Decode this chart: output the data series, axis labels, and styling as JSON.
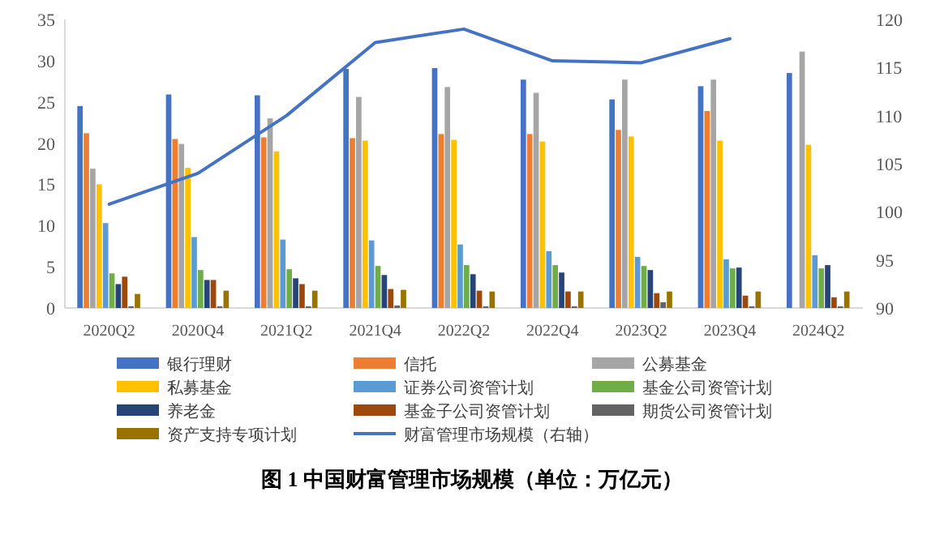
{
  "chart_data": {
    "type": "bar",
    "title": "图 1 中国财富管理市场规模（单位：万亿元）",
    "categories": [
      "2020Q2",
      "2020Q4",
      "2021Q2",
      "2021Q4",
      "2022Q2",
      "2022Q4",
      "2023Q2",
      "2023Q4",
      "2024Q2"
    ],
    "series": [
      {
        "name": "银行理财",
        "color": "#4472c4",
        "values": [
          24.5,
          25.9,
          25.8,
          29.0,
          29.1,
          27.7,
          25.3,
          26.9,
          28.5
        ]
      },
      {
        "name": "信托",
        "color": "#ed7d31",
        "values": [
          21.2,
          20.5,
          20.7,
          20.6,
          21.1,
          21.1,
          21.6,
          23.9,
          null
        ]
      },
      {
        "name": "公募基金",
        "color": "#a5a5a5",
        "values": [
          16.9,
          19.9,
          23.0,
          25.6,
          26.8,
          26.1,
          27.7,
          27.7,
          31.1
        ]
      },
      {
        "name": "私募基金",
        "color": "#ffc000",
        "values": [
          15.0,
          17.0,
          19.0,
          20.3,
          20.4,
          20.2,
          20.8,
          20.3,
          19.8
        ]
      },
      {
        "name": "证券公司资管计划",
        "color": "#5b9bd5",
        "values": [
          10.3,
          8.6,
          8.3,
          8.2,
          7.7,
          6.9,
          6.2,
          5.9,
          6.4
        ]
      },
      {
        "name": "基金公司资管计划",
        "color": "#70ad47",
        "values": [
          4.2,
          4.6,
          4.7,
          5.1,
          5.2,
          5.2,
          5.1,
          4.8,
          4.8
        ]
      },
      {
        "name": "养老金",
        "color": "#264478",
        "values": [
          2.9,
          3.4,
          3.6,
          4.0,
          4.1,
          4.3,
          4.6,
          4.9,
          5.2
        ]
      },
      {
        "name": "基金子公司资管计划",
        "color": "#9e480e",
        "values": [
          3.8,
          3.4,
          2.9,
          2.3,
          2.1,
          2.0,
          1.8,
          1.5,
          1.3
        ]
      },
      {
        "name": "期货公司资管计划",
        "color": "#636363",
        "values": [
          0.2,
          0.2,
          0.2,
          0.3,
          0.2,
          0.2,
          0.7,
          0.2,
          0.2
        ]
      },
      {
        "name": "资产支持专项计划",
        "color": "#997300",
        "values": [
          1.7,
          2.1,
          2.1,
          2.2,
          2.0,
          2.0,
          2.0,
          2.0,
          2.0
        ]
      },
      {
        "name": "财富管理市场规模（右轴）",
        "color": "#4472c4",
        "type": "line",
        "axis": "y2",
        "values": [
          100.8,
          104.0,
          110.0,
          117.6,
          119.0,
          115.7,
          115.5,
          118.0,
          null
        ]
      }
    ],
    "ylim": [
      0,
      35
    ],
    "yticks": [
      0,
      5,
      10,
      15,
      20,
      25,
      30,
      35
    ],
    "y2lim": [
      90,
      120
    ],
    "y2ticks": [
      90,
      95,
      100,
      105,
      110,
      115,
      120
    ],
    "grid": false,
    "legend": "bottom",
    "marker": "none",
    "line_style": "solid"
  }
}
